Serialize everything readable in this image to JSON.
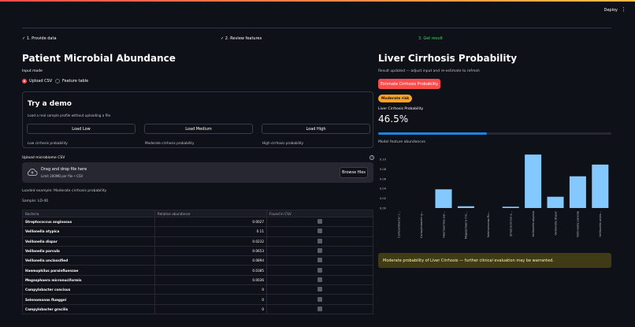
{
  "header": {
    "deploy_label": "Deploy",
    "menu_icon": "kebab-menu-icon"
  },
  "steps": [
    {
      "label": "✓ 1. Provide data"
    },
    {
      "label": "✓ 2. Review features"
    },
    {
      "label": "3. Get result"
    }
  ],
  "left": {
    "title": "Patient Microbial Abundance",
    "input_mode_label": "Input mode",
    "input_modes": [
      "Upload CSV",
      "Feature table"
    ],
    "selected_mode": "Upload CSV",
    "demo": {
      "title": "Try a demo",
      "desc": "Load a real sample profile without uploading a file.",
      "buttons": [
        {
          "label": "Load Low",
          "caption": "Low cirrhosis probability"
        },
        {
          "label": "Load Medium",
          "caption": "Moderate cirrhosis probability"
        },
        {
          "label": "Load High",
          "caption": "High cirrhosis probability"
        }
      ]
    },
    "upload": {
      "label": "Upload microbiome CSV",
      "drop_text": "Drag and drop file here",
      "limit_text": "Limit 200MB per file • CSV",
      "browse_label": "Browse files"
    },
    "loaded_text": "Loaded example: Moderate cirrhosis probability",
    "sample_text": "Sample: LD-46",
    "table": {
      "headers": [
        "Bacteria",
        "Relative abundance",
        "Found in CSV"
      ],
      "rows": [
        [
          "Streptococcus anginosus",
          "0.0027"
        ],
        [
          "Veillonella atypica",
          "0.11"
        ],
        [
          "Veillonella dispar",
          "0.0232"
        ],
        [
          "Veillonella parvula",
          "0.0653"
        ],
        [
          "Veillonella unclassified",
          "0.0894"
        ],
        [
          "Haemophilus parainfluenzae",
          "0.0385"
        ],
        [
          "Megasphaera micronuciformis",
          "0.0036"
        ],
        [
          "Campylobacter concisus",
          "0"
        ],
        [
          "Selenomonas flueggei",
          "0"
        ],
        [
          "Campylobacter gracilis",
          "0"
        ]
      ]
    }
  },
  "right": {
    "title": "Liver Cirrhosis Probability",
    "status_text": "Result updated — adjust input and re-estimate to refresh",
    "run_label": "Estimate Cirrhosis Probability",
    "risk_badge": "Moderate risk",
    "metric_label": "Liver Cirrhosis Probability",
    "metric_value": "46.5%",
    "progress": 0.465,
    "chart_caption": "Model feature abundances",
    "warning_text": "Moderate probability of Liver Cirrhosis — further clinical evaluation may be warranted.",
    "colors": {
      "accent": "#ff4b4b",
      "badge": "#ffa421",
      "bar": "#83c9ff",
      "progress": "#1c83e1",
      "success": "#3dd56d"
    }
  },
  "chart_data": {
    "type": "bar",
    "title": "",
    "xlabel": "",
    "ylabel": "",
    "ylim": [
      0,
      0.12
    ],
    "yticks": [
      "0.00",
      "0.02",
      "0.04",
      "0.06",
      "0.08",
      "0.10"
    ],
    "categories": [
      "Campylobacter c...",
      "Campylobacter g...",
      "Haemophilus par...",
      "Megasphaera mic...",
      "Selenomonas flu...",
      "Streptococcus a...",
      "Veillonella atypica",
      "Veillonella dispar",
      "Veillonella parvula",
      "Veillonella uncla..."
    ],
    "values": [
      0,
      0,
      0.0385,
      0.0036,
      0,
      0.0027,
      0.11,
      0.0232,
      0.0653,
      0.0894
    ]
  }
}
